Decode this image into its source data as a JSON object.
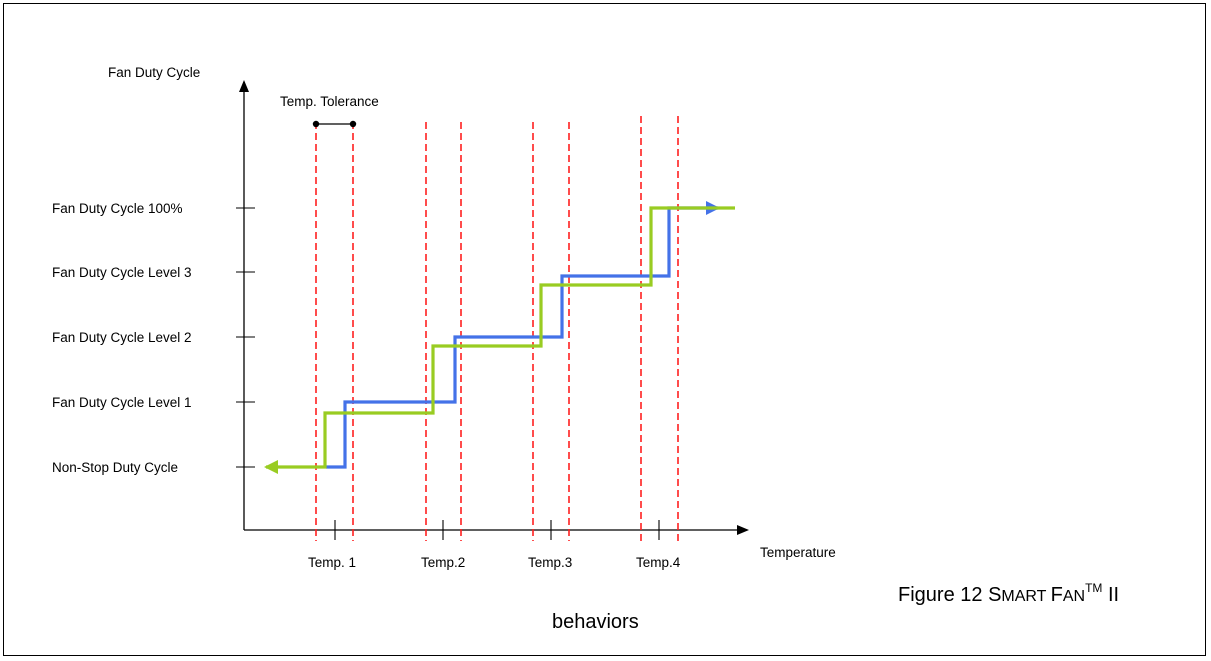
{
  "diagram": {
    "y_axis_label": "Fan Duty Cycle",
    "x_axis_label": "Temperature",
    "tolerance_label": "Temp. Tolerance",
    "y_levels": [
      "Fan Duty Cycle 100%",
      "Fan Duty Cycle Level 3",
      "Fan Duty Cycle Level 2",
      "Fan Duty Cycle Level 1",
      "Non-Stop Duty Cycle"
    ],
    "x_ticks": [
      "Temp. 1",
      "Temp.2",
      "Temp.3",
      "Temp.4"
    ],
    "colors": {
      "rising_line": "#4472e8",
      "falling_line": "#99cc22",
      "tolerance_lines": "#ff2020",
      "axes": "#000000"
    }
  },
  "caption": {
    "figure_number": "Figure 12 ",
    "smart_s": "S",
    "smart_rest": "MART ",
    "fan_f": "F",
    "fan_rest": "AN",
    "tm": "TM",
    "roman": " II",
    "line2": "behaviors"
  }
}
